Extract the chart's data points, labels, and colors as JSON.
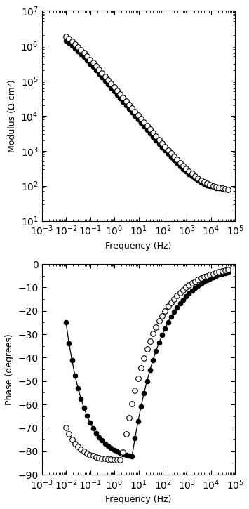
{
  "fig_width": 3.55,
  "fig_height": 7.25,
  "dpi": 100,
  "top_plot": {
    "xlabel": "Frequency (Hz)",
    "ylabel": "Modulus (Ω cm²)",
    "xlim": [
      0.001,
      100000.0
    ],
    "ylim": [
      10,
      10000000.0
    ]
  },
  "bottom_plot": {
    "xlabel": "Frequency (Hz)",
    "ylabel": "Phase (degrees)",
    "xlim": [
      0.001,
      100000.0
    ],
    "ylim": [
      -90,
      0
    ],
    "yticks": [
      0,
      -10,
      -20,
      -30,
      -40,
      -50,
      -60,
      -70,
      -80,
      -90
    ]
  },
  "open_circle_color": "white",
  "filled_circle_color": "black",
  "line_color": "black",
  "marker_size": 4.5,
  "line_width": 0.9,
  "background_color": "white"
}
